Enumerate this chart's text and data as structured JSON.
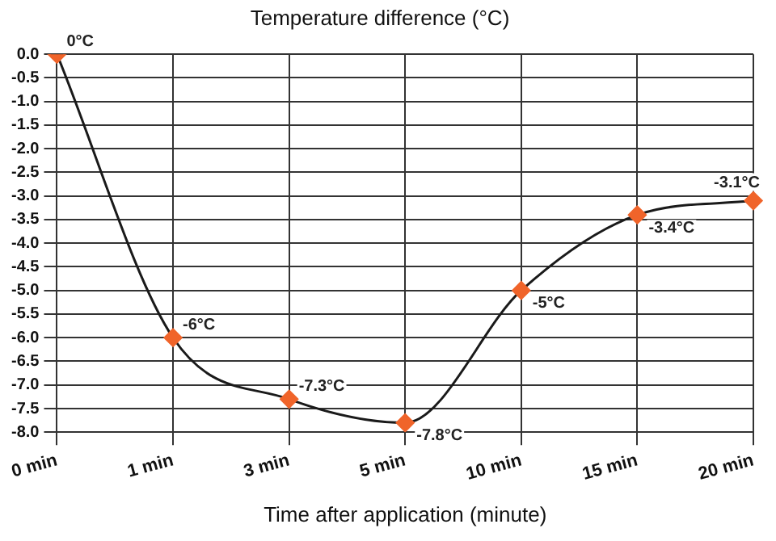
{
  "chart_data": {
    "type": "line",
    "title": "Temperature difference (°C)",
    "xlabel": "Time after application (minute)",
    "categories": [
      "0 min",
      "1 min",
      "3 min",
      "5 min",
      "10 min",
      "15 min",
      "20 min"
    ],
    "series": [
      {
        "color": "#1a1a1a",
        "colors": [
          "#f0642a",
          "#f0642a",
          "#f0642a",
          "#f0642a",
          "#f0642a",
          "#f0642a",
          "#f0642a"
        ],
        "values": [
          0,
          -6,
          -7.3,
          -7.8,
          -5,
          -3.4,
          -3.1
        ],
        "value_labels": [
          "0°C",
          "-6°C",
          "-7.3°C",
          "-7.8°C",
          "-5°C",
          "-3.4°C",
          "-3.1°C"
        ]
      }
    ],
    "ylim": [
      -8,
      0
    ],
    "yticks": [
      {
        "value": 0,
        "label": "0.0"
      },
      {
        "value": -0.5,
        "label": "-0.5"
      },
      {
        "value": -1,
        "label": "-1.0"
      },
      {
        "value": -1.5,
        "label": "-1.5"
      },
      {
        "value": -2,
        "label": "-2.0"
      },
      {
        "value": -2.5,
        "label": "-2.5"
      },
      {
        "value": -3,
        "label": "-3.0"
      },
      {
        "value": -3.5,
        "label": "-3.5"
      },
      {
        "value": -4,
        "label": "-4.0"
      },
      {
        "value": -4.5,
        "label": "-4.5"
      },
      {
        "value": -5,
        "label": "-5.0"
      },
      {
        "value": -5.5,
        "label": "-5.5"
      },
      {
        "value": -6,
        "label": "-6.0"
      },
      {
        "value": -6.5,
        "label": "-6.5"
      },
      {
        "value": -7,
        "label": "-7.0"
      },
      {
        "value": -7.5,
        "label": "-7.5"
      },
      {
        "value": -8,
        "label": "-8.0"
      }
    ],
    "grid": true,
    "legend": false,
    "marker": "diamond",
    "line_style": "solid"
  }
}
